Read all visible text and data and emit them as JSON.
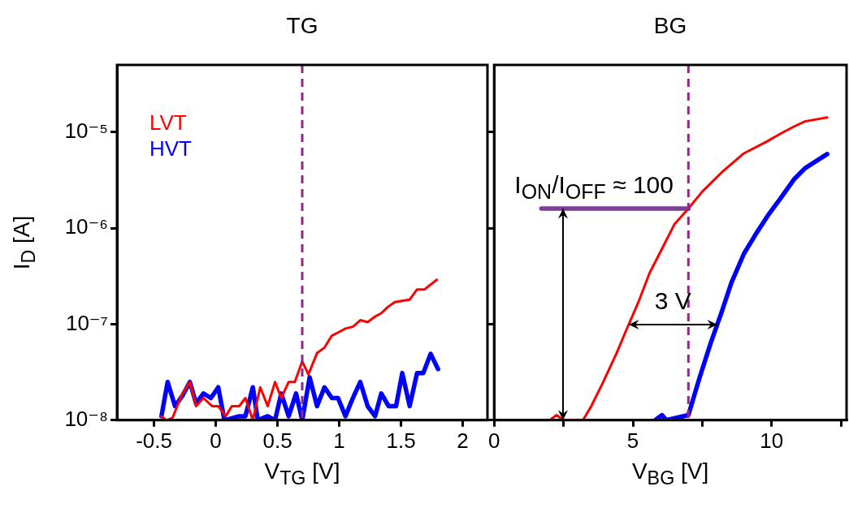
{
  "chart_data": [
    {
      "type": "line",
      "title": "TG",
      "xlabel": "V$_{TG}$ [V]",
      "ylabel": "I$_{D}$ [A]",
      "log": "y",
      "marker": "none",
      "legend": "top left",
      "grid": false,
      "xlim": [
        -0.8,
        2.2
      ],
      "xticks": [
        -0.5,
        0,
        0.5,
        1,
        1.5,
        2
      ],
      "ylim": [
        1e-08,
        5e-05
      ],
      "yticks": [
        {
          "value": 1e-08,
          "label": "10⁻⁸"
        },
        {
          "value": 1e-07,
          "label": "10⁻⁷"
        },
        {
          "value": 1e-06,
          "label": "10⁻⁶"
        },
        {
          "value": 1e-05,
          "label": "10⁻⁵"
        }
      ],
      "ref_lines": [
        {
          "axis": "x",
          "value": 0.7,
          "color": "#8b2a8b",
          "line_style": "dashed"
        }
      ],
      "series": [
        {
          "name": "LVT",
          "color": "#ff0000",
          "x": [
            -0.44,
            -0.4,
            -0.35,
            -0.27,
            -0.21,
            -0.16,
            -0.1,
            -0.03,
            0.02,
            0.08,
            0.13,
            0.19,
            0.24,
            0.3,
            0.36,
            0.42,
            0.48,
            0.53,
            0.59,
            0.64,
            0.7,
            0.75,
            0.82,
            0.88,
            0.94,
            1.0,
            1.05,
            1.11,
            1.17,
            1.23,
            1.29,
            1.34,
            1.39,
            1.45,
            1.57,
            1.63,
            1.69,
            1.79
          ],
          "values": [
            1.1e-08,
            1e-08,
            1.06e-08,
            1.9e-08,
            2.5e-08,
            1.4e-08,
            1.7e-08,
            1.4e-08,
            1.4e-08,
            1.1e-08,
            1.4e-08,
            1.4e-08,
            1.7e-08,
            1e-08,
            2.2e-08,
            1.4e-08,
            2.5e-08,
            1.7e-08,
            2.5e-08,
            2.5e-08,
            4.1e-08,
            3e-08,
            5e-08,
            5.7e-08,
            7.6e-08,
            8.3e-08,
            9e-08,
            9.4e-08,
            1.1e-07,
            1.05e-07,
            1.2e-07,
            1.3e-07,
            1.5e-07,
            1.7e-07,
            1.8e-07,
            2.3e-07,
            2.3e-07,
            2.9e-07
          ]
        },
        {
          "name": "HVT",
          "color": "#0000ff",
          "x": [
            -0.44,
            -0.39,
            -0.33,
            -0.27,
            -0.21,
            -0.16,
            -0.1,
            -0.04,
            0.02,
            0.07,
            0.19,
            0.24,
            0.3,
            0.34,
            0.42,
            0.48,
            0.53,
            0.59,
            0.65,
            0.7,
            0.76,
            0.82,
            0.88,
            0.94,
            0.99,
            1.05,
            1.11,
            1.17,
            1.23,
            1.29,
            1.34,
            1.4,
            1.46,
            1.51,
            1.57,
            1.63,
            1.68,
            1.74,
            1.8
          ],
          "values": [
            1.1e-08,
            2.5e-08,
            1.4e-08,
            1.8e-08,
            2.5e-08,
            1.5e-08,
            1.9e-08,
            1.7e-08,
            2.2e-08,
            1e-08,
            1.1e-08,
            1.1e-08,
            2.2e-08,
            1e-08,
            1.1e-08,
            1e-08,
            1.9e-08,
            1.1e-08,
            1.9e-08,
            1e-08,
            2.8e-08,
            1.4e-08,
            2.2e-08,
            1.7e-08,
            1.7e-08,
            1.1e-08,
            1.7e-08,
            2.5e-08,
            1.4e-08,
            1.1e-08,
            1.9e-08,
            1.4e-08,
            1.4e-08,
            3.1e-08,
            1.4e-08,
            3.1e-08,
            3.1e-08,
            4.9e-08,
            3.4e-08
          ]
        }
      ]
    },
    {
      "type": "line",
      "title": "BG",
      "xlabel": "V$_{BG}$ [V]",
      "log": "y",
      "marker": "none",
      "legend": false,
      "grid": false,
      "tick_labels": "x",
      "xlim": [
        0,
        12.7
      ],
      "xticks": [
        0,
        {
          "value": 2.5,
          "label": null
        },
        5,
        {
          "value": 7.5,
          "label": null
        },
        10,
        {
          "value": 12.5,
          "label": null
        }
      ],
      "ylim": [
        1e-08,
        5e-05
      ],
      "yticks": [
        {
          "value": 1e-08,
          "label": null
        },
        {
          "value": 1e-07,
          "label": null
        },
        {
          "value": 1e-06,
          "label": null
        },
        {
          "value": 1e-05,
          "label": null
        }
      ],
      "ref_lines": [
        {
          "axis": "x",
          "value": 7,
          "color": "#94278f",
          "line_style": "dashed"
        }
      ],
      "annotations": [
        "I$_{ON}$/I$_{OFF}$ ≈ 100",
        "3 V"
      ],
      "series": [
        {
          "color": "#ff0000",
          "x": [
            2.0,
            2.25,
            2.5,
            3.2,
            3.5,
            3.9,
            4.4,
            4.8,
            5.2,
            5.6,
            6.05,
            6.5,
            7.0,
            7.5,
            8.2,
            9.0,
            9.8,
            10.4,
            10.8,
            11.2,
            12.0
          ],
          "values": [
            1e-08,
            1.13e-08,
            1e-08,
            1e-08,
            1.4e-08,
            2.4e-08,
            4.9e-08,
            9.2e-08,
            1.7e-07,
            3.4e-07,
            6.1e-07,
            1.1e-06,
            1.6e-06,
            2.4e-06,
            3.8e-06,
            6e-06,
            7.9e-06,
            9.9e-06,
            1.14e-05,
            1.29e-05,
            1.42e-05
          ]
        },
        {
          "color": "#0000ff",
          "x": [
            5.8,
            6.05,
            6.2,
            7.0,
            7.4,
            7.8,
            8.2,
            8.55,
            9.0,
            9.4,
            9.9,
            10.3,
            10.8,
            11.2,
            12.0
          ],
          "values": [
            1e-08,
            1.13e-08,
            1e-08,
            1.13e-08,
            2.75e-08,
            6.3e-08,
            1.34e-07,
            2.7e-07,
            5.4e-07,
            8.4e-07,
            1.4e-06,
            2e-06,
            3.2e-06,
            4.2e-06,
            5.9e-06
          ]
        },
        {
          "type": "line",
          "color": "#7b3f96",
          "x": [
            1.7,
            7
          ],
          "values": [
            1.6e-06,
            1.6e-06
          ]
        }
      ]
    }
  ]
}
